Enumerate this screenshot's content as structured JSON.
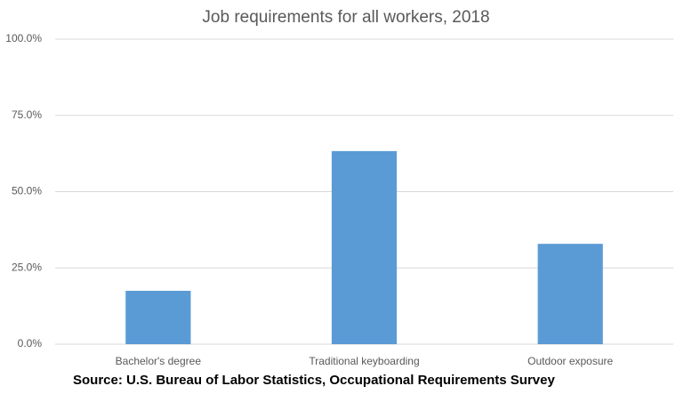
{
  "chart_data": {
    "type": "bar",
    "title": "Job requirements for all workers, 2018",
    "categories": [
      "Bachelor's degree",
      "Traditional keyboarding",
      "Outdoor exposure"
    ],
    "values": [
      17.5,
      63.3,
      32.9
    ],
    "color": "#5b9bd5",
    "ylim": [
      0,
      100
    ],
    "yticks": [
      {
        "value": 0,
        "label": "0.0%"
      },
      {
        "value": 25,
        "label": "25.0%"
      },
      {
        "value": 50,
        "label": "50.0%"
      },
      {
        "value": 75,
        "label": "75.0%"
      },
      {
        "value": 100,
        "label": "100.0%"
      }
    ],
    "grid": true,
    "source": "Source: U.S. Bureau of Labor Statistics, Occupational Requirements Survey"
  }
}
